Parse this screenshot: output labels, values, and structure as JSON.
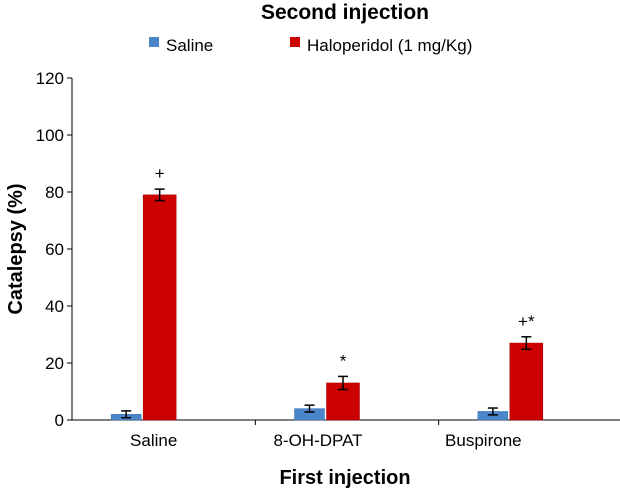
{
  "chart_data": {
    "type": "bar",
    "title": "Second injection",
    "xlabel": "First injection",
    "ylabel": "Catalepsy (%)",
    "ylim": [
      0,
      120
    ],
    "yticks": [
      0,
      20,
      40,
      60,
      80,
      100,
      120
    ],
    "grid": false,
    "legend_position": "top",
    "categories": [
      "Saline",
      "8-OH-DPAT",
      "Buspirone"
    ],
    "series": [
      {
        "name": "Saline",
        "color": "#4a86c8",
        "values": [
          2,
          4,
          3
        ],
        "errors": [
          1.2,
          1.2,
          1.2
        ],
        "annotations": [
          "",
          "",
          ""
        ]
      },
      {
        "name": "Haloperidol (1 mg/Kg)",
        "color": "#cc0000",
        "values": [
          79,
          13,
          27
        ],
        "errors": [
          2,
          2.3,
          2.2
        ],
        "annotations": [
          "+",
          "*",
          "+*"
        ]
      }
    ]
  }
}
